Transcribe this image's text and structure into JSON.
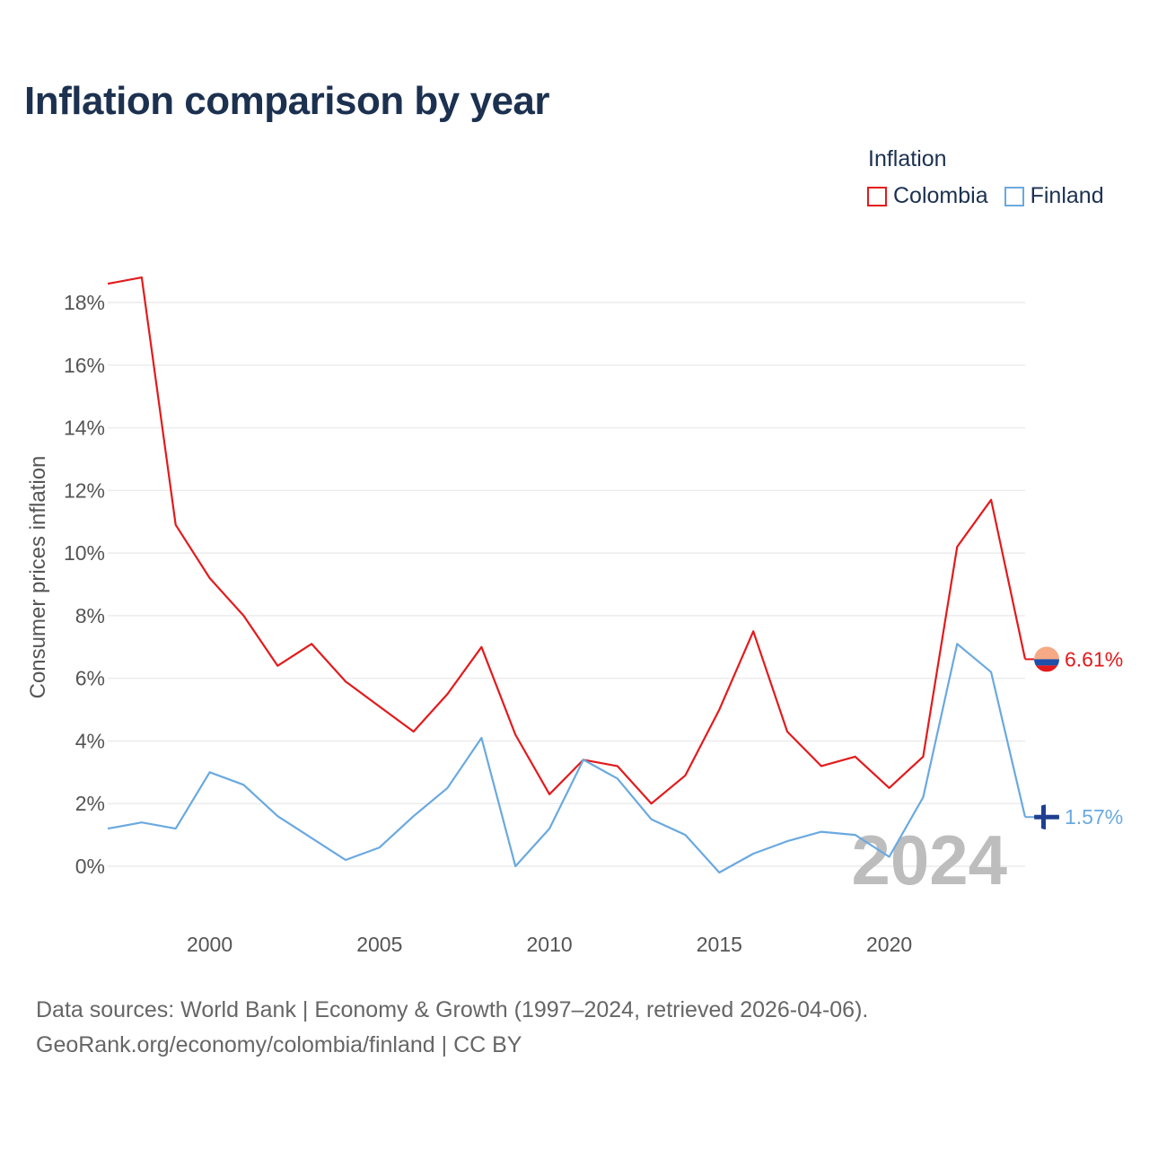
{
  "title": "Inflation comparison by year",
  "legend": {
    "title": "Inflation",
    "items": [
      {
        "label": "Colombia",
        "color": "#e31a1c"
      },
      {
        "label": "Finland",
        "color": "#6aa9e0"
      }
    ]
  },
  "source": {
    "line1": "Data sources: World Bank | Economy & Growth (1997–2024, retrieved 2026-04-06).",
    "line2": "GeoRank.org/economy/colombia/finland | CC BY"
  },
  "chart_data": {
    "type": "line",
    "title": "Inflation comparison by year",
    "xlabel": "",
    "ylabel": "Consumer prices inflation",
    "xlim": [
      1997,
      2024
    ],
    "ylim": [
      -1.5,
      19.5
    ],
    "x_ticks": [
      2000,
      2005,
      2010,
      2015,
      2020
    ],
    "y_ticks": [
      0,
      2,
      4,
      6,
      8,
      10,
      12,
      14,
      16,
      18
    ],
    "y_tick_labels": [
      "0%",
      "2%",
      "4%",
      "6%",
      "8%",
      "10%",
      "12%",
      "14%",
      "16%",
      "18%"
    ],
    "grid": true,
    "year_watermark": "2024",
    "x": [
      1997,
      1998,
      1999,
      2000,
      2001,
      2002,
      2003,
      2004,
      2005,
      2006,
      2007,
      2008,
      2009,
      2010,
      2011,
      2012,
      2013,
      2014,
      2015,
      2016,
      2017,
      2018,
      2019,
      2020,
      2021,
      2022,
      2023,
      2024
    ],
    "series": [
      {
        "name": "Colombia",
        "color": "#e31a1c",
        "end_label": "6.61%",
        "flag": "colombia-flag-icon",
        "values": [
          18.6,
          18.8,
          10.9,
          9.2,
          8.0,
          6.4,
          7.1,
          5.9,
          5.1,
          4.3,
          5.5,
          7.0,
          4.2,
          2.3,
          3.4,
          3.2,
          2.0,
          2.9,
          5.0,
          7.5,
          4.3,
          3.2,
          3.5,
          2.5,
          3.5,
          10.2,
          11.7,
          6.61
        ]
      },
      {
        "name": "Finland",
        "color": "#6aa9e0",
        "end_label": "1.57%",
        "flag": "finland-flag-icon",
        "values": [
          1.2,
          1.4,
          1.2,
          3.0,
          2.6,
          1.6,
          0.9,
          0.2,
          0.6,
          1.6,
          2.5,
          4.1,
          0.0,
          1.2,
          3.4,
          2.8,
          1.5,
          1.0,
          -0.2,
          0.4,
          0.8,
          1.1,
          1.0,
          0.3,
          2.2,
          7.1,
          6.2,
          1.57
        ]
      }
    ]
  }
}
